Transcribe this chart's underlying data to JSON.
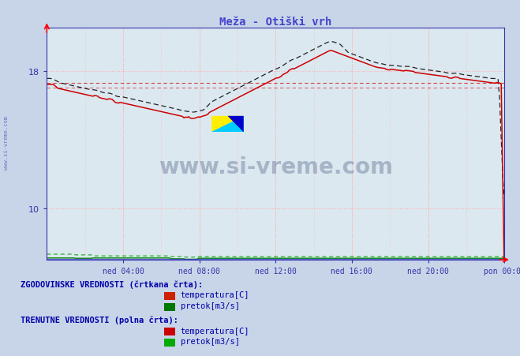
{
  "title": "Meža - Otiški vrh",
  "title_color": "#4444cc",
  "bg_color": "#c8d4e8",
  "plot_bg_color": "#dce8f0",
  "grid_color": "#ffb0b0",
  "axis_color": "#3333aa",
  "ylim": [
    7.0,
    20.5
  ],
  "yticks": [
    10,
    18
  ],
  "xtick_labels": [
    "ned 04:00",
    "ned 08:00",
    "ned 12:00",
    "ned 16:00",
    "ned 20:00",
    "pon 00:00"
  ],
  "watermark_text": "www.si-vreme.com",
  "watermark_color": "#1a3060",
  "watermark_alpha": 0.28,
  "legend_text_color": "#0000aa",
  "legend_label1": "ZGODOVINSKE VREDNOSTI (črtkana črta):",
  "legend_label2": "TRENUTNE VREDNOSTI (polna črta):",
  "legend_items": [
    "temperatura[C]",
    "pretok[m3/s]"
  ],
  "temp_color": "#cc0000",
  "flow_color": "#00aa00",
  "black_color": "#000000",
  "n_points": 288,
  "hist_avg1": 17.3,
  "hist_avg2": 17.0
}
